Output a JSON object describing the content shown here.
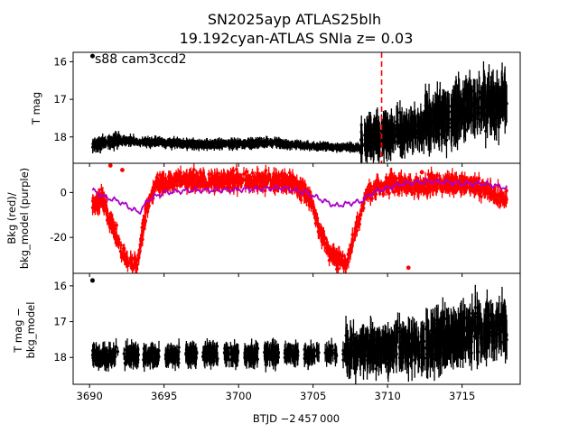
{
  "figure": {
    "title_line1": "SN2025ayp  ATLAS25blh",
    "title_line2": "19.192cyan-ATLAS SNIa z= 0.03",
    "xlabel": "BTJD −2 457 000",
    "colors": {
      "flux": "#000000",
      "bkg": "#ff0000",
      "bkg_model": "#aa00cc",
      "marker_line": "#ff0000"
    }
  },
  "chart_data": [
    {
      "type": "scatter",
      "panel": "top",
      "ylabel": "T mag",
      "annotation": "s88 cam3ccd2",
      "y_inverted": true,
      "xlim": [
        3688.9,
        3718.9
      ],
      "ylim": [
        15.75,
        18.7
      ],
      "xticks": [
        3690,
        3695,
        3700,
        3705,
        3710,
        3715
      ],
      "yticks": [
        16,
        17,
        18
      ],
      "vline_x": 3709.6,
      "series": [
        {
          "segments": [
            {
              "x0": 3690.2,
              "x1": 3692.0,
              "y_start": 18.2,
              "y_end": 18.1,
              "scatter": 0.12
            },
            {
              "x0": 3692.0,
              "x1": 3697.5,
              "y_start": 18.1,
              "y_end": 18.2,
              "scatter": 0.08
            },
            {
              "x0": 3697.5,
              "x1": 3703.0,
              "y_start": 18.2,
              "y_end": 18.15,
              "scatter": 0.08
            },
            {
              "x0": 3703.0,
              "x1": 3708.2,
              "y_start": 18.2,
              "y_end": 18.3,
              "scatter": 0.07
            },
            {
              "x0": 3708.2,
              "x1": 3712.5,
              "y_start": 18.1,
              "y_end": 17.75,
              "scatter": 0.35
            },
            {
              "x0": 3712.5,
              "x1": 3718.0,
              "y_start": 17.6,
              "y_end": 17.0,
              "scatter": 0.45
            }
          ],
          "outliers": [
            [
              3690.2,
              15.85
            ]
          ]
        }
      ]
    },
    {
      "type": "scatter",
      "panel": "middle",
      "ylabel_line1": "Bkg (red)/",
      "ylabel_line2": "bkg_model (purple)",
      "xlim": [
        3688.9,
        3718.9
      ],
      "ylim": [
        -36,
        13
      ],
      "xticks": [
        3690,
        3695,
        3700,
        3705,
        3710,
        3715
      ],
      "yticks": [
        0,
        -20
      ],
      "series": [
        {
          "name": "Bkg",
          "knots": [
            [
              3690.2,
              -5
            ],
            [
              3690.8,
              -2
            ],
            [
              3691.6,
              -16
            ],
            [
              3692.4,
              -30
            ],
            [
              3693.2,
              -32
            ],
            [
              3693.8,
              -8
            ],
            [
              3694.5,
              4
            ],
            [
              3696.0,
              6
            ],
            [
              3698.0,
              5
            ],
            [
              3700.0,
              6
            ],
            [
              3702.0,
              5
            ],
            [
              3703.5,
              5
            ],
            [
              3704.8,
              -2
            ],
            [
              3705.4,
              -16
            ],
            [
              3706.2,
              -28
            ],
            [
              3707.2,
              -32
            ],
            [
              3708.0,
              -14
            ],
            [
              3708.6,
              0
            ],
            [
              3710.0,
              4
            ],
            [
              3712.0,
              3
            ],
            [
              3714.0,
              4
            ],
            [
              3716.0,
              3
            ],
            [
              3718.0,
              -3
            ]
          ],
          "scatter": 3.5,
          "outliers": [
            [
              3691.4,
              12
            ],
            [
              3692.2,
              10
            ],
            [
              3711.4,
              -33.5
            ],
            [
              3712.3,
              9
            ]
          ]
        },
        {
          "name": "bkg_model",
          "knots": [
            [
              3690.2,
              1
            ],
            [
              3691.0,
              -2
            ],
            [
              3692.0,
              -4
            ],
            [
              3693.3,
              -9
            ],
            [
              3694.0,
              -3
            ],
            [
              3695.0,
              0
            ],
            [
              3697.0,
              1
            ],
            [
              3699.0,
              1
            ],
            [
              3701.0,
              1.5
            ],
            [
              3703.0,
              2
            ],
            [
              3704.5,
              0
            ],
            [
              3705.5,
              -3
            ],
            [
              3706.5,
              -6
            ],
            [
              3707.3,
              -5
            ],
            [
              3708.2,
              -4
            ],
            [
              3709.0,
              0
            ],
            [
              3711.0,
              4
            ],
            [
              3713.0,
              5
            ],
            [
              3715.0,
              4
            ],
            [
              3716.5,
              4
            ],
            [
              3718.0,
              2
            ]
          ]
        }
      ]
    },
    {
      "type": "scatter",
      "panel": "bottom",
      "ylabel_line1": "T mag −",
      "ylabel_line2": "bkg_model",
      "y_inverted": true,
      "xlim": [
        3688.9,
        3718.9
      ],
      "ylim": [
        15.65,
        18.75
      ],
      "xticks": [
        3690,
        3695,
        3700,
        3705,
        3710,
        3715
      ],
      "yticks": [
        16,
        17,
        18
      ],
      "series": [
        {
          "segments": [
            {
              "x0": 3690.2,
              "x1": 3707.2,
              "y_start": 17.95,
              "y_end": 17.9,
              "scatter": 0.2
            },
            {
              "x0": 3707.2,
              "x1": 3712.5,
              "y_start": 17.8,
              "y_end": 17.7,
              "scatter": 0.4
            },
            {
              "x0": 3712.5,
              "x1": 3718.0,
              "y_start": 17.6,
              "y_end": 17.1,
              "scatter": 0.5
            }
          ],
          "gaps": [
            [
              3691.9,
              3692.3
            ],
            [
              3693.3,
              3693.6
            ],
            [
              3694.7,
              3695.1
            ],
            [
              3696.0,
              3696.4
            ],
            [
              3697.2,
              3697.6
            ],
            [
              3698.6,
              3699.0
            ],
            [
              3700.0,
              3700.4
            ],
            [
              3701.3,
              3701.7
            ],
            [
              3702.7,
              3703.1
            ],
            [
              3704.0,
              3704.4
            ],
            [
              3705.4,
              3705.8
            ],
            [
              3706.6,
              3707.0
            ]
          ],
          "outliers": [
            [
              3690.2,
              15.85
            ]
          ]
        }
      ]
    }
  ]
}
